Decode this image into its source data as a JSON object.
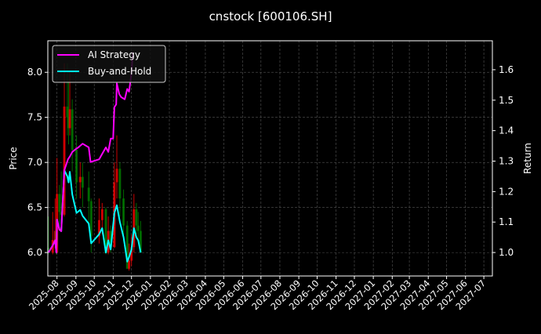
{
  "chart_data": {
    "type": "line",
    "title": "cnstock [600106.SH]",
    "xlabel": "",
    "ylabel_left": "Price",
    "ylabel_right": "Return",
    "xlim": [
      "2025-07-17",
      "2027-07-15"
    ],
    "ylim_left": [
      5.74,
      8.35
    ],
    "ylim_right": [
      0.923,
      1.695
    ],
    "grid": true,
    "legend_placement": "top-left",
    "x_ticks": [
      "2025-08",
      "2025-09",
      "2025-10",
      "2025-11",
      "2025-12",
      "2026-01",
      "2026-02",
      "2026-03",
      "2026-04",
      "2026-05",
      "2026-06",
      "2026-07",
      "2026-08",
      "2026-09",
      "2026-10",
      "2026-11",
      "2026-12",
      "2027-01",
      "2027-02",
      "2027-03",
      "2027-04",
      "2027-05",
      "2027-06",
      "2027-07"
    ],
    "y_ticks_left": [
      "6.0",
      "6.5",
      "7.0",
      "7.5",
      "8.0"
    ],
    "y_ticks_right": [
      "1.0",
      "1.1",
      "1.2",
      "1.3",
      "1.4",
      "1.5",
      "1.6"
    ],
    "colors": {
      "up": "#ff0000",
      "down": "#008000",
      "ai": "#ff00ff",
      "bh": "#00ffff",
      "background": "#000000"
    },
    "candles_columns": [
      "date",
      "open",
      "high",
      "low",
      "close"
    ],
    "candles": [
      [
        "2025-07-18",
        6.05,
        6.4,
        5.98,
        6.0
      ],
      [
        "2025-07-25",
        6.0,
        6.45,
        5.98,
        6.14
      ],
      [
        "2025-07-29",
        6.14,
        6.6,
        6.05,
        6.24
      ],
      [
        "2025-07-31",
        6.24,
        6.3,
        5.98,
        6.0
      ],
      [
        "2025-08-01",
        6.0,
        7.05,
        5.99,
        6.65
      ],
      [
        "2025-08-05",
        6.65,
        6.75,
        6.3,
        6.45
      ],
      [
        "2025-08-08",
        6.45,
        6.9,
        6.35,
        6.42
      ],
      [
        "2025-08-13",
        6.42,
        8.1,
        6.4,
        7.62
      ],
      [
        "2025-08-18",
        7.62,
        8.1,
        7.3,
        7.5
      ],
      [
        "2025-08-20",
        7.5,
        7.9,
        7.2,
        7.38
      ],
      [
        "2025-08-22",
        7.38,
        8.0,
        7.3,
        7.59
      ],
      [
        "2025-08-26",
        7.59,
        7.7,
        6.9,
        7.14
      ],
      [
        "2025-09-02",
        7.14,
        7.3,
        6.6,
        6.78
      ],
      [
        "2025-09-08",
        6.78,
        7.0,
        6.6,
        6.84
      ],
      [
        "2025-09-12",
        6.84,
        7.0,
        6.5,
        6.72
      ],
      [
        "2025-09-22",
        6.72,
        6.9,
        6.3,
        6.57
      ],
      [
        "2025-09-26",
        6.57,
        6.6,
        6.0,
        6.18
      ],
      [
        "2025-10-09",
        6.18,
        6.6,
        6.1,
        6.36
      ],
      [
        "2025-10-14",
        6.36,
        6.55,
        6.2,
        6.48
      ],
      [
        "2025-10-20",
        6.48,
        6.5,
        5.98,
        6.0
      ],
      [
        "2025-10-24",
        6.0,
        6.4,
        5.98,
        6.24
      ],
      [
        "2025-10-28",
        6.24,
        6.3,
        6.0,
        6.06
      ],
      [
        "2025-11-03",
        6.06,
        7.0,
        6.05,
        6.78
      ],
      [
        "2025-11-07",
        6.78,
        7.3,
        6.6,
        6.93
      ],
      [
        "2025-11-12",
        6.93,
        7.0,
        6.4,
        6.6
      ],
      [
        "2025-11-18",
        6.6,
        6.7,
        6.2,
        6.3
      ],
      [
        "2025-11-24",
        6.3,
        6.35,
        5.82,
        5.82
      ],
      [
        "2025-11-27",
        5.82,
        6.1,
        5.8,
        5.91
      ],
      [
        "2025-12-01",
        5.91,
        6.2,
        5.85,
        6.06
      ],
      [
        "2025-12-05",
        6.06,
        6.65,
        6.0,
        6.48
      ],
      [
        "2025-12-09",
        6.48,
        6.55,
        6.2,
        6.3
      ],
      [
        "2025-12-12",
        6.3,
        6.45,
        6.15,
        6.24
      ],
      [
        "2025-12-16",
        6.24,
        6.35,
        6.0,
        6.0
      ]
    ],
    "series": [
      {
        "name": "AI Strategy",
        "axis": "right",
        "x": [
          "2025-07-18",
          "2025-07-25",
          "2025-07-29",
          "2025-07-31",
          "2025-08-01",
          "2025-08-05",
          "2025-08-08",
          "2025-08-13",
          "2025-08-19",
          "2025-08-22",
          "2025-08-26",
          "2025-09-01",
          "2025-09-05",
          "2025-09-12",
          "2025-09-22",
          "2025-09-25",
          "2025-10-09",
          "2025-10-20",
          "2025-10-24",
          "2025-10-28",
          "2025-11-01",
          "2025-11-03",
          "2025-11-06",
          "2025-11-07",
          "2025-11-11",
          "2025-11-14",
          "2025-11-20",
          "2025-11-24",
          "2025-11-27",
          "2025-12-01",
          "2025-12-03"
        ],
        "values": [
          1.0,
          1.023,
          1.04,
          1.0,
          1.108,
          1.075,
          1.07,
          1.27,
          1.306,
          1.315,
          1.33,
          1.34,
          1.345,
          1.357,
          1.345,
          1.297,
          1.306,
          1.345,
          1.33,
          1.374,
          1.374,
          1.477,
          1.486,
          1.555,
          1.52,
          1.51,
          1.503,
          1.537,
          1.528,
          1.589,
          1.658
        ]
      },
      {
        "name": "Buy-and-Hold",
        "axis": "right",
        "x": [
          "2025-07-18",
          "2025-07-25",
          "2025-07-29",
          "2025-07-31",
          "2025-08-01",
          "2025-08-05",
          "2025-08-08",
          "2025-08-13",
          "2025-08-18",
          "2025-08-20",
          "2025-08-22",
          "2025-08-26",
          "2025-09-02",
          "2025-09-08",
          "2025-09-12",
          "2025-09-22",
          "2025-09-26",
          "2025-10-09",
          "2025-10-14",
          "2025-10-20",
          "2025-10-24",
          "2025-10-28",
          "2025-11-03",
          "2025-11-07",
          "2025-11-12",
          "2025-11-18",
          "2025-11-24",
          "2025-11-27",
          "2025-12-01",
          "2025-12-05",
          "2025-12-09",
          "2025-12-12",
          "2025-12-16"
        ],
        "values": [
          1.0,
          1.023,
          1.04,
          1.0,
          1.108,
          1.075,
          1.07,
          1.27,
          1.25,
          1.23,
          1.265,
          1.19,
          1.13,
          1.14,
          1.12,
          1.095,
          1.03,
          1.06,
          1.08,
          1.0,
          1.04,
          1.01,
          1.13,
          1.155,
          1.1,
          1.05,
          0.97,
          0.985,
          1.01,
          1.08,
          1.05,
          1.04,
          1.0
        ]
      }
    ]
  }
}
